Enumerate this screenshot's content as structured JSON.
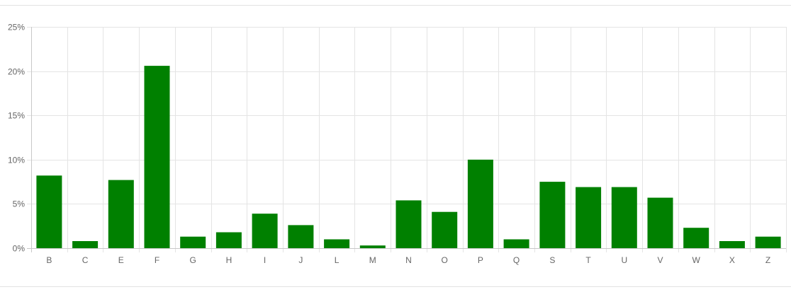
{
  "chart_data": {
    "type": "bar",
    "categories": [
      "B",
      "C",
      "E",
      "F",
      "G",
      "H",
      "I",
      "J",
      "L",
      "M",
      "N",
      "O",
      "P",
      "Q",
      "S",
      "T",
      "U",
      "V",
      "W",
      "X",
      "Z"
    ],
    "values": [
      8.2,
      0.8,
      7.7,
      20.6,
      1.3,
      1.8,
      3.9,
      2.6,
      1.0,
      0.3,
      5.4,
      4.1,
      10.0,
      1.0,
      7.5,
      6.9,
      6.9,
      5.7,
      2.3,
      0.8,
      1.3
    ],
    "yticks": [
      "0%",
      "5%",
      "10%",
      "15%",
      "20%",
      "25%"
    ],
    "ylim": [
      0,
      25
    ],
    "grid": true,
    "legend": "none",
    "bar_color": "#008000",
    "grid_color": "#e4e4e4",
    "axis_color": "#c8c8c8"
  }
}
